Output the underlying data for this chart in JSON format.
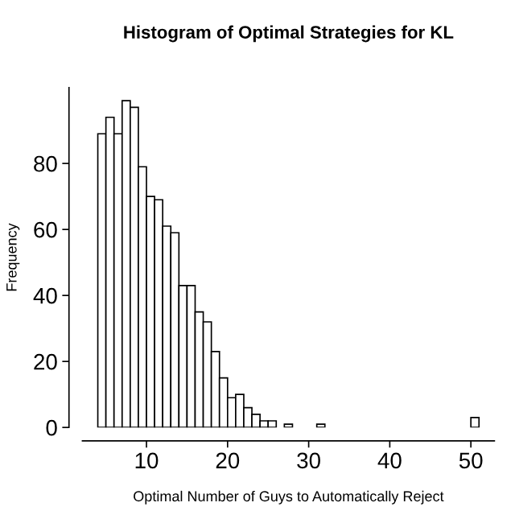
{
  "chart_data": {
    "type": "histogram",
    "title": "Histogram of Optimal Strategies for KL",
    "xlabel": "Optimal Number of Guys to Automatically Reject",
    "ylabel": "Frequency",
    "bins": [
      4,
      5,
      6,
      7,
      8,
      9,
      10,
      11,
      12,
      13,
      14,
      15,
      16,
      17,
      18,
      19,
      20,
      21,
      22,
      23,
      24,
      25,
      26,
      27,
      28,
      29,
      30,
      31,
      32,
      33,
      34,
      35,
      36,
      37,
      38,
      39,
      40,
      41,
      42,
      43,
      44,
      45,
      46,
      47,
      48,
      49,
      50,
      51
    ],
    "values": [
      89,
      94,
      89,
      99,
      97,
      79,
      70,
      69,
      61,
      59,
      43,
      43,
      35,
      32,
      23,
      15,
      9,
      10,
      6,
      4,
      2,
      2,
      0,
      1,
      0,
      0,
      0,
      1,
      0,
      0,
      0,
      0,
      0,
      0,
      0,
      0,
      0,
      0,
      0,
      0,
      0,
      0,
      0,
      0,
      0,
      0,
      3
    ],
    "color": "#ffffff",
    "xlim": [
      2.1,
      52.9
    ],
    "xticks": [
      10,
      20,
      30,
      40,
      50
    ],
    "ylim": [
      0,
      103
    ],
    "yticks": [
      0,
      20,
      40,
      60,
      80
    ],
    "grid": false
  }
}
